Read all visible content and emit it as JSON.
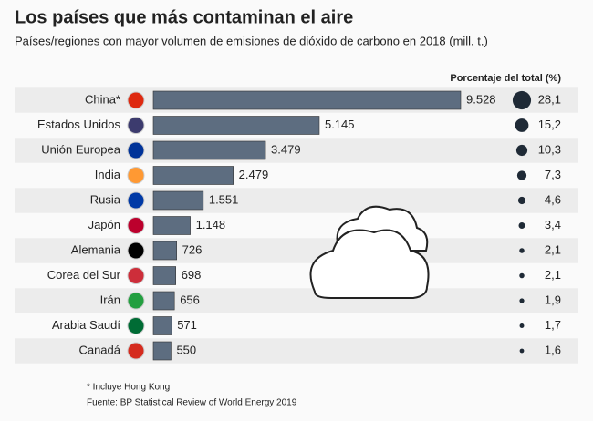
{
  "chart_data": {
    "type": "bar",
    "title": "Los países que más contaminan el aire",
    "subtitle": "Países/regiones con mayor volumen de emisiones de dióxido de carbono en 2018 (mill. t.)",
    "categories": [
      "China*",
      "Estados Unidos",
      "Unión Europea",
      "India",
      "Rusia",
      "Japón",
      "Alemania",
      "Corea del Sur",
      "Irán",
      "Arabia Saudí",
      "Canadá"
    ],
    "values": [
      9528,
      5145,
      3479,
      2479,
      1551,
      1148,
      726,
      698,
      656,
      571,
      550
    ],
    "value_labels": [
      "9.528",
      "5.145",
      "3.479",
      "2.479",
      "1.551",
      "1.148",
      "726",
      "698",
      "656",
      "571",
      "550"
    ],
    "color": "#5d6d80",
    "share": {
      "name": "Porcentaje del total (%)",
      "color": "#1f2a36",
      "values": [
        28.1,
        15.2,
        10.3,
        7.3,
        4.6,
        3.4,
        2.1,
        2.1,
        1.9,
        1.7,
        1.6
      ],
      "value_labels": [
        "28,1",
        "15,2",
        "10,3",
        "7,3",
        "4,6",
        "3,4",
        "2,1",
        "2,1",
        "1,9",
        "1,7",
        "1,6"
      ]
    },
    "notes": [
      "* Incluye Hong Kong",
      "Fuente: BP Statistical Review of World Energy 2019"
    ]
  }
}
